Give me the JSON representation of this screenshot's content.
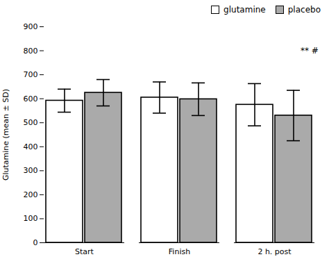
{
  "chart_data": {
    "type": "bar",
    "categories": [
      "Start",
      "Finish",
      "2 h. post"
    ],
    "series": [
      {
        "name": "glutamine",
        "color": "#ffffff",
        "values": [
          592,
          605,
          575
        ],
        "errors": [
          48,
          65,
          88
        ]
      },
      {
        "name": "placebo",
        "color": "#aaaaaa",
        "values": [
          625,
          598,
          530
        ],
        "errors": [
          55,
          68,
          105
        ]
      }
    ],
    "ylabel": "Glutamine (mean ± SD)",
    "ylim": [
      0,
      900
    ],
    "yticks": [
      0,
      100,
      200,
      300,
      400,
      500,
      600,
      700,
      800,
      900
    ],
    "annotations": [
      {
        "text": "** #",
        "category": "2 h. post"
      }
    ],
    "legend": "upper right",
    "grid": false
  }
}
